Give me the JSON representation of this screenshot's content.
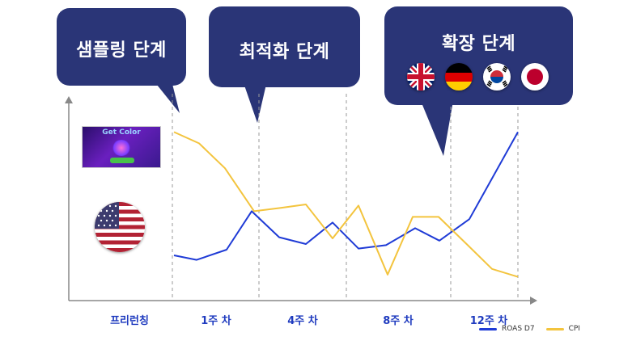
{
  "callouts": [
    {
      "title": "샘플링 단계"
    },
    {
      "title": "최적화 단계"
    },
    {
      "title": "확장 단계",
      "flags": [
        "uk-flag-icon",
        "germany-flag-icon",
        "korea-flag-icon",
        "japan-flag-icon"
      ]
    }
  ],
  "thumbnail": {
    "title": "Get Color"
  },
  "left_flag_icon": "usa-flag-icon",
  "chart_data": {
    "type": "line",
    "x_labels": [
      "프리런칭",
      "1주 차",
      "4주 차",
      "8주 차",
      "12주 차"
    ],
    "series": [
      {
        "name": "ROAS D7",
        "color": "#1f3bd6",
        "values": [
          0.35,
          0.31,
          0.4,
          0.74,
          0.51,
          0.45,
          0.64,
          0.41,
          0.44,
          0.59,
          0.48,
          0.67,
          1.44
        ]
      },
      {
        "name": "CPI",
        "color": "#f3c43e",
        "values": [
          1.44,
          1.34,
          1.12,
          0.74,
          0.77,
          0.8,
          0.5,
          0.79,
          0.18,
          0.69,
          0.69,
          0.44,
          0.23,
          0.16
        ]
      }
    ],
    "grid": "vertical dashed phase separators"
  },
  "colors": {
    "callout_bg": "#2a3577",
    "axis": "#888888",
    "label": "#1f3bbf"
  }
}
